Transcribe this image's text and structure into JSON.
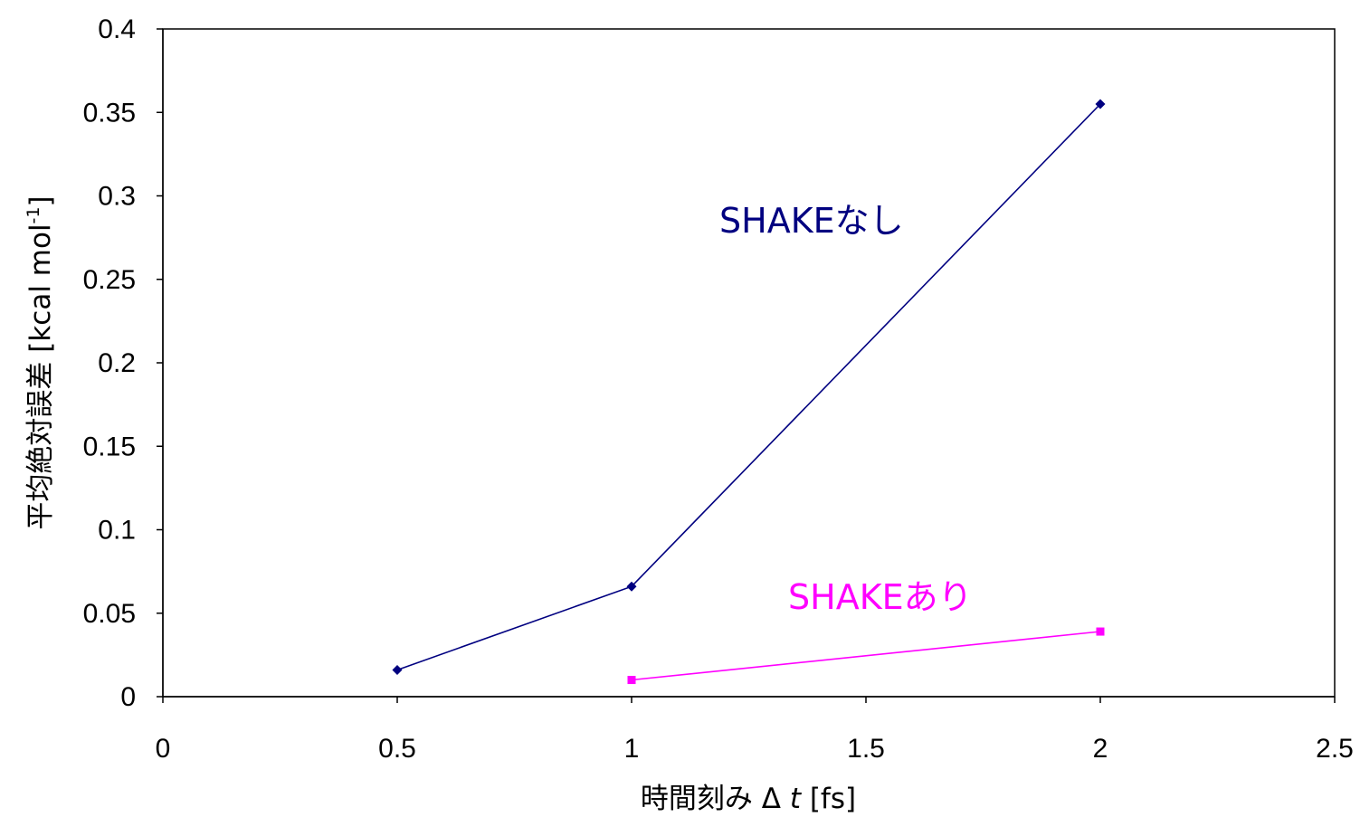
{
  "chart_data": {
    "type": "line",
    "title": "",
    "xlabel": "時間刻み Δ t [fs]",
    "xlabel_parts": {
      "prefix": "時間刻み Δ ",
      "var": "t",
      "suffix": " [fs]"
    },
    "ylabel": "平均絶対誤差 [kcal mol-1]",
    "ylabel_parts": {
      "main": "平均絶対誤差 [kcal mol",
      "sup": "-1",
      "close": "]"
    },
    "xlim": [
      0,
      2.5
    ],
    "ylim": [
      0,
      0.4
    ],
    "xticks": [
      "0",
      "0.5",
      "1",
      "1.5",
      "2",
      "2.5"
    ],
    "yticks": [
      "0",
      "0.05",
      "0.1",
      "0.15",
      "0.2",
      "0.25",
      "0.3",
      "0.35",
      "0.4"
    ],
    "grid": false,
    "legend": "none",
    "series": [
      {
        "name": "SHAKEなし",
        "color": "#000080",
        "marker": "diamond",
        "x": [
          0.5,
          1,
          2
        ],
        "y": [
          0.016,
          0.066,
          0.355
        ]
      },
      {
        "name": "SHAKEあり",
        "color": "#ff00ff",
        "marker": "square",
        "x": [
          1,
          2
        ],
        "y": [
          0.01,
          0.039
        ]
      }
    ]
  }
}
